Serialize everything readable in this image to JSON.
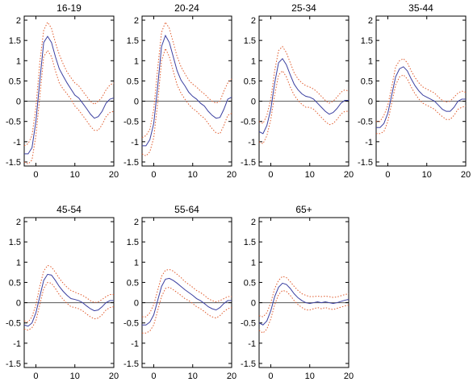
{
  "chart_data": [
    {
      "type": "line",
      "title": "16-19",
      "xlim": [
        -3,
        20
      ],
      "ylim": [
        -1.6,
        2.1
      ],
      "xticks": [
        0,
        10,
        20
      ],
      "yticks": [
        -1.5,
        -1,
        -0.5,
        0,
        0.5,
        1,
        1.5,
        2
      ],
      "zero_line": true,
      "x": [
        -3,
        -2,
        -1,
        0,
        1,
        2,
        3,
        4,
        5,
        6,
        7,
        8,
        9,
        10,
        11,
        12,
        13,
        14,
        15,
        16,
        17,
        18,
        19,
        20
      ],
      "series": [
        {
          "role": "estimate",
          "style": "solid",
          "color": "#3a3fa0",
          "values": [
            -1.3,
            -1.3,
            -1.15,
            -0.5,
            0.5,
            1.45,
            1.6,
            1.45,
            1.1,
            0.8,
            0.62,
            0.45,
            0.3,
            0.15,
            0.08,
            -0.05,
            -0.18,
            -0.32,
            -0.42,
            -0.38,
            -0.25,
            -0.05,
            0.05,
            0.08
          ]
        },
        {
          "role": "upper-band",
          "style": "dotted",
          "color": "#e05a2b",
          "values": [
            -1.1,
            -1.05,
            -0.85,
            -0.15,
            0.95,
            1.75,
            1.95,
            1.8,
            1.45,
            1.15,
            0.92,
            0.72,
            0.58,
            0.45,
            0.38,
            0.25,
            0.12,
            0.0,
            -0.08,
            0.0,
            0.1,
            0.28,
            0.4,
            0.45
          ]
        },
        {
          "role": "lower-band",
          "style": "dotted",
          "color": "#e05a2b",
          "values": [
            -1.5,
            -1.55,
            -1.45,
            -0.85,
            0.1,
            1.1,
            1.25,
            1.1,
            0.75,
            0.45,
            0.3,
            0.18,
            0.05,
            -0.12,
            -0.22,
            -0.35,
            -0.48,
            -0.62,
            -0.72,
            -0.72,
            -0.58,
            -0.38,
            -0.28,
            -0.25
          ]
        }
      ]
    },
    {
      "type": "line",
      "title": "20-24",
      "xlim": [
        -3,
        20
      ],
      "ylim": [
        -1.6,
        2.1
      ],
      "xticks": [
        0,
        10,
        20
      ],
      "yticks": [
        -1.5,
        -1,
        -0.5,
        0,
        0.5,
        1,
        1.5,
        2
      ],
      "zero_line": true,
      "x": [
        -3,
        -2,
        -1,
        0,
        1,
        2,
        3,
        4,
        5,
        6,
        7,
        8,
        9,
        10,
        11,
        12,
        13,
        14,
        15,
        16,
        17,
        18,
        19,
        20
      ],
      "series": [
        {
          "role": "estimate",
          "style": "solid",
          "color": "#3a3fa0",
          "values": [
            -1.1,
            -1.1,
            -0.95,
            -0.55,
            0.35,
            1.35,
            1.62,
            1.45,
            1.1,
            0.75,
            0.52,
            0.38,
            0.22,
            0.12,
            0.05,
            -0.05,
            -0.12,
            -0.25,
            -0.35,
            -0.42,
            -0.4,
            -0.2,
            0.05,
            0.1
          ]
        },
        {
          "role": "upper-band",
          "style": "dotted",
          "color": "#e05a2b",
          "values": [
            -0.9,
            -0.85,
            -0.7,
            -0.2,
            0.8,
            1.7,
            1.95,
            1.8,
            1.45,
            1.1,
            0.85,
            0.68,
            0.52,
            0.42,
            0.35,
            0.25,
            0.18,
            0.08,
            0.0,
            -0.05,
            0.0,
            0.25,
            0.45,
            0.55
          ]
        },
        {
          "role": "lower-band",
          "style": "dotted",
          "color": "#e05a2b",
          "values": [
            -1.3,
            -1.35,
            -1.25,
            -0.9,
            -0.05,
            1.0,
            1.3,
            1.1,
            0.75,
            0.4,
            0.2,
            0.05,
            -0.08,
            -0.18,
            -0.25,
            -0.35,
            -0.42,
            -0.55,
            -0.68,
            -0.78,
            -0.8,
            -0.6,
            -0.35,
            -0.3
          ]
        }
      ]
    },
    {
      "type": "line",
      "title": "25-34",
      "xlim": [
        -3,
        20
      ],
      "ylim": [
        -1.6,
        2.1
      ],
      "xticks": [
        0,
        10,
        20
      ],
      "yticks": [
        -1.5,
        -1,
        -0.5,
        0,
        0.5,
        1,
        1.5,
        2
      ],
      "zero_line": true,
      "x": [
        -3,
        -2,
        -1,
        0,
        1,
        2,
        3,
        4,
        5,
        6,
        7,
        8,
        9,
        10,
        11,
        12,
        13,
        14,
        15,
        16,
        17,
        18,
        19,
        20
      ],
      "series": [
        {
          "role": "estimate",
          "style": "solid",
          "color": "#3a3fa0",
          "values": [
            -0.75,
            -0.8,
            -0.6,
            -0.2,
            0.45,
            0.95,
            1.05,
            0.9,
            0.65,
            0.42,
            0.28,
            0.18,
            0.12,
            0.1,
            0.05,
            -0.05,
            -0.15,
            -0.25,
            -0.32,
            -0.28,
            -0.18,
            -0.05,
            0.02,
            0.02
          ]
        },
        {
          "role": "upper-band",
          "style": "dotted",
          "color": "#e05a2b",
          "values": [
            -0.5,
            -0.55,
            -0.35,
            0.05,
            0.75,
            1.25,
            1.35,
            1.2,
            0.95,
            0.7,
            0.55,
            0.45,
            0.38,
            0.35,
            0.3,
            0.22,
            0.12,
            0.02,
            -0.05,
            0.0,
            0.1,
            0.22,
            0.28,
            0.25
          ]
        },
        {
          "role": "lower-band",
          "style": "dotted",
          "color": "#e05a2b",
          "values": [
            -1.0,
            -1.05,
            -0.85,
            -0.45,
            0.15,
            0.65,
            0.75,
            0.6,
            0.35,
            0.15,
            0.02,
            -0.08,
            -0.15,
            -0.15,
            -0.2,
            -0.3,
            -0.4,
            -0.5,
            -0.58,
            -0.55,
            -0.45,
            -0.32,
            -0.25,
            -0.25
          ]
        }
      ]
    },
    {
      "type": "line",
      "title": "35-44",
      "xlim": [
        -3,
        20
      ],
      "ylim": [
        -1.6,
        2.1
      ],
      "xticks": [
        0,
        10,
        20
      ],
      "yticks": [
        -1.5,
        -1,
        -0.5,
        0,
        0.5,
        1,
        1.5,
        2
      ],
      "zero_line": true,
      "x": [
        -3,
        -2,
        -1,
        0,
        1,
        2,
        3,
        4,
        5,
        6,
        7,
        8,
        9,
        10,
        11,
        12,
        13,
        14,
        15,
        16,
        17,
        18,
        19,
        20
      ],
      "series": [
        {
          "role": "estimate",
          "style": "solid",
          "color": "#3a3fa0",
          "values": [
            -0.65,
            -0.65,
            -0.55,
            -0.3,
            0.15,
            0.6,
            0.8,
            0.85,
            0.75,
            0.55,
            0.38,
            0.25,
            0.15,
            0.1,
            0.05,
            0.0,
            -0.1,
            -0.2,
            -0.25,
            -0.25,
            -0.15,
            0.0,
            0.05,
            0.05
          ]
        },
        {
          "role": "upper-band",
          "style": "dotted",
          "color": "#e05a2b",
          "values": [
            -0.5,
            -0.5,
            -0.35,
            -0.1,
            0.35,
            0.85,
            1.0,
            1.05,
            0.95,
            0.75,
            0.58,
            0.45,
            0.35,
            0.3,
            0.25,
            0.2,
            0.1,
            0.02,
            -0.02,
            0.0,
            0.1,
            0.2,
            0.25,
            0.22
          ]
        },
        {
          "role": "lower-band",
          "style": "dotted",
          "color": "#e05a2b",
          "values": [
            -0.8,
            -0.8,
            -0.75,
            -0.5,
            -0.05,
            0.4,
            0.6,
            0.65,
            0.55,
            0.35,
            0.18,
            0.05,
            -0.05,
            -0.1,
            -0.15,
            -0.2,
            -0.3,
            -0.38,
            -0.45,
            -0.45,
            -0.35,
            -0.2,
            -0.15,
            -0.12
          ]
        }
      ]
    },
    {
      "type": "line",
      "title": "45-54",
      "xlim": [
        -3,
        20
      ],
      "ylim": [
        -1.6,
        2.1
      ],
      "xticks": [
        0,
        10,
        20
      ],
      "yticks": [
        -1.5,
        -1,
        -0.5,
        0,
        0.5,
        1,
        1.5,
        2
      ],
      "zero_line": true,
      "x": [
        -3,
        -2,
        -1,
        0,
        1,
        2,
        3,
        4,
        5,
        6,
        7,
        8,
        9,
        10,
        11,
        12,
        13,
        14,
        15,
        16,
        17,
        18,
        19,
        20
      ],
      "series": [
        {
          "role": "estimate",
          "style": "solid",
          "color": "#3a3fa0",
          "values": [
            -0.55,
            -0.58,
            -0.5,
            -0.25,
            0.15,
            0.55,
            0.7,
            0.68,
            0.55,
            0.4,
            0.28,
            0.18,
            0.1,
            0.08,
            0.05,
            0.0,
            -0.08,
            -0.15,
            -0.2,
            -0.18,
            -0.1,
            0.0,
            0.05,
            0.05
          ]
        },
        {
          "role": "upper-band",
          "style": "dotted",
          "color": "#e05a2b",
          "values": [
            -0.45,
            -0.48,
            -0.35,
            -0.05,
            0.4,
            0.78,
            0.92,
            0.88,
            0.75,
            0.6,
            0.48,
            0.38,
            0.3,
            0.26,
            0.22,
            0.18,
            0.12,
            0.05,
            0.0,
            0.02,
            0.08,
            0.15,
            0.2,
            0.2
          ]
        },
        {
          "role": "lower-band",
          "style": "dotted",
          "color": "#e05a2b",
          "values": [
            -0.65,
            -0.68,
            -0.62,
            -0.45,
            -0.05,
            0.35,
            0.5,
            0.48,
            0.35,
            0.2,
            0.08,
            -0.02,
            -0.1,
            -0.12,
            -0.15,
            -0.2,
            -0.28,
            -0.35,
            -0.4,
            -0.38,
            -0.3,
            -0.18,
            -0.12,
            -0.1
          ]
        }
      ]
    },
    {
      "type": "line",
      "title": "55-64",
      "xlim": [
        -3,
        20
      ],
      "ylim": [
        -1.6,
        2.1
      ],
      "xticks": [
        0,
        10,
        20
      ],
      "yticks": [
        -1.5,
        -1,
        -0.5,
        0,
        0.5,
        1,
        1.5,
        2
      ],
      "zero_line": true,
      "x": [
        -3,
        -2,
        -1,
        0,
        1,
        2,
        3,
        4,
        5,
        6,
        7,
        8,
        9,
        10,
        11,
        12,
        13,
        14,
        15,
        16,
        17,
        18,
        19,
        20
      ],
      "series": [
        {
          "role": "estimate",
          "style": "solid",
          "color": "#3a3fa0",
          "values": [
            -0.55,
            -0.55,
            -0.48,
            -0.3,
            0.05,
            0.4,
            0.58,
            0.6,
            0.55,
            0.48,
            0.4,
            0.32,
            0.25,
            0.18,
            0.1,
            0.05,
            -0.02,
            -0.1,
            -0.15,
            -0.18,
            -0.12,
            -0.02,
            0.05,
            0.05
          ]
        },
        {
          "role": "upper-band",
          "style": "dotted",
          "color": "#e05a2b",
          "values": [
            -0.35,
            -0.35,
            -0.25,
            -0.05,
            0.3,
            0.65,
            0.8,
            0.82,
            0.78,
            0.7,
            0.62,
            0.52,
            0.45,
            0.38,
            0.3,
            0.25,
            0.18,
            0.1,
            0.05,
            0.02,
            0.05,
            0.1,
            0.15,
            0.15
          ]
        },
        {
          "role": "lower-band",
          "style": "dotted",
          "color": "#e05a2b",
          "values": [
            -0.75,
            -0.75,
            -0.7,
            -0.55,
            -0.2,
            0.15,
            0.35,
            0.38,
            0.32,
            0.25,
            0.18,
            0.1,
            0.05,
            -0.02,
            -0.1,
            -0.15,
            -0.22,
            -0.3,
            -0.35,
            -0.38,
            -0.32,
            -0.22,
            -0.15,
            -0.12
          ]
        }
      ]
    },
    {
      "type": "line",
      "title": "65+",
      "xlim": [
        -3,
        20
      ],
      "ylim": [
        -1.6,
        2.1
      ],
      "xticks": [
        0,
        10,
        20
      ],
      "yticks": [
        -1.5,
        -1,
        -0.5,
        0,
        0.5,
        1,
        1.5,
        2
      ],
      "zero_line": true,
      "x": [
        -3,
        -2,
        -1,
        0,
        1,
        2,
        3,
        4,
        5,
        6,
        7,
        8,
        9,
        10,
        11,
        12,
        13,
        14,
        15,
        16,
        17,
        18,
        19,
        20
      ],
      "series": [
        {
          "role": "estimate",
          "style": "solid",
          "color": "#3a3fa0",
          "values": [
            -0.5,
            -0.55,
            -0.45,
            -0.2,
            0.15,
            0.38,
            0.48,
            0.45,
            0.35,
            0.22,
            0.12,
            0.05,
            0.0,
            -0.02,
            0.0,
            0.02,
            0.0,
            0.02,
            0.0,
            -0.02,
            0.0,
            0.03,
            0.06,
            0.08
          ]
        },
        {
          "role": "upper-band",
          "style": "dotted",
          "color": "#e05a2b",
          "values": [
            -0.32,
            -0.35,
            -0.25,
            0.0,
            0.35,
            0.55,
            0.65,
            0.62,
            0.52,
            0.4,
            0.3,
            0.22,
            0.18,
            0.15,
            0.15,
            0.16,
            0.15,
            0.16,
            0.15,
            0.13,
            0.14,
            0.17,
            0.2,
            0.22
          ]
        },
        {
          "role": "lower-band",
          "style": "dotted",
          "color": "#e05a2b",
          "values": [
            -0.68,
            -0.75,
            -0.65,
            -0.4,
            -0.05,
            0.2,
            0.3,
            0.28,
            0.18,
            0.05,
            -0.05,
            -0.12,
            -0.18,
            -0.18,
            -0.15,
            -0.12,
            -0.15,
            -0.12,
            -0.15,
            -0.17,
            -0.14,
            -0.11,
            -0.08,
            -0.06
          ]
        }
      ]
    }
  ]
}
